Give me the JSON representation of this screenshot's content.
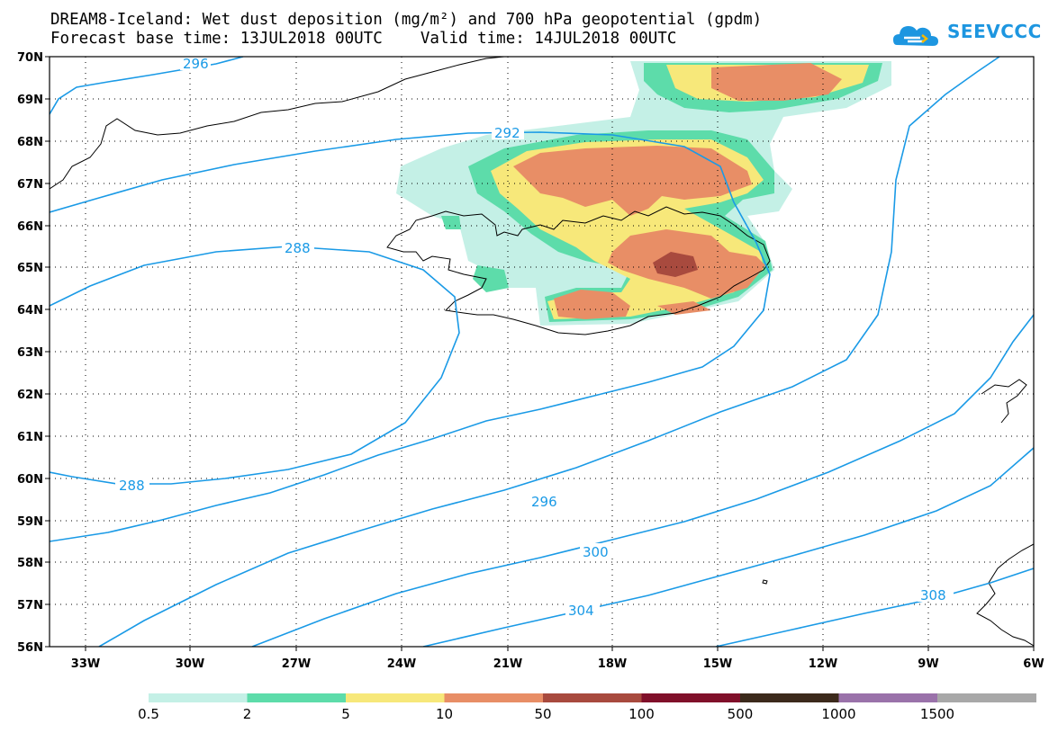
{
  "header": {
    "line1": "DREAM8-Iceland: Wet dust deposition (mg/m²) and 700 hPa geopotential (gpdm)",
    "line2": "Forecast base time: 13JUL2018 00UTC    Valid time: 14JUL2018 00UTC"
  },
  "logo": {
    "text": "SEEVCCC",
    "icon": "cloud-icon",
    "color": "#1d96e0"
  },
  "axes": {
    "lat_labels": [
      "70N",
      "69N",
      "68N",
      "67N",
      "66N",
      "65N",
      "64N",
      "63N",
      "62N",
      "61N",
      "60N",
      "59N",
      "58N",
      "57N",
      "56N"
    ],
    "lon_labels": [
      "33W",
      "30W",
      "27W",
      "24W",
      "21W",
      "18W",
      "15W",
      "12W",
      "9W",
      "6W"
    ]
  },
  "contours": {
    "color": "#1a9ae6",
    "labels": [
      "296",
      "292",
      "288",
      "288",
      "296",
      "300",
      "304",
      "308"
    ]
  },
  "legend": {
    "labels": [
      "0.5",
      "2",
      "5",
      "10",
      "50",
      "100",
      "500",
      "1000",
      "1500"
    ],
    "colors": [
      "#c4f0e6",
      "#5ddcaa",
      "#f7e87a",
      "#e88e66",
      "#a84a3e",
      "#80102a",
      "#3c2a1c",
      "#9a72aa",
      "#a8a8a8"
    ]
  },
  "colors": {
    "coast": "#000000",
    "grid": "#000000",
    "frame": "#000000"
  }
}
